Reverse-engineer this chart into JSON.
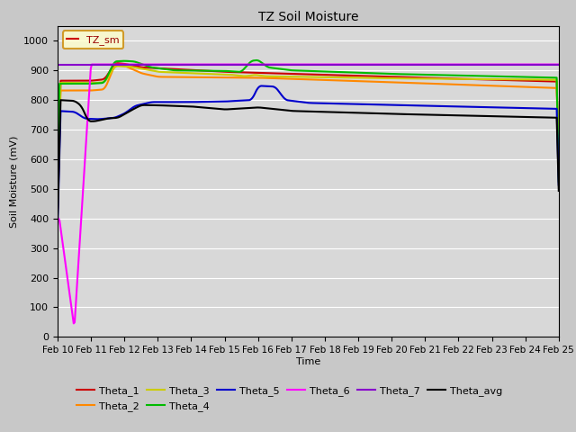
{
  "title": "TZ Soil Moisture",
  "xlabel": "Time",
  "ylabel": "Soil Moisture (mV)",
  "ylim": [
    0,
    1050
  ],
  "yticks": [
    0,
    100,
    200,
    300,
    400,
    500,
    600,
    700,
    800,
    900,
    1000
  ],
  "legend_label": "TZ_sm",
  "bg_color": "#d8d8d8",
  "series_colors": {
    "Theta_1": "#cc0000",
    "Theta_2": "#ff8800",
    "Theta_3": "#cccc00",
    "Theta_4": "#00bb00",
    "Theta_5": "#0000cc",
    "Theta_6": "#ff00ff",
    "Theta_7": "#8800cc",
    "Theta_avg": "#000000"
  },
  "x_ticks": [
    10,
    11,
    12,
    13,
    14,
    15,
    16,
    17,
    18,
    19,
    20,
    21,
    22,
    23,
    24,
    25
  ],
  "x_tick_labels": [
    "Feb 10",
    "Feb 11",
    "Feb 12",
    "Feb 13",
    "Feb 14",
    "Feb 15",
    "Feb 16",
    "Feb 17",
    "Feb 18",
    "Feb 19",
    "Feb 20",
    "Feb 21",
    "Feb 22",
    "Feb 23",
    "Feb 24",
    "Feb 25"
  ],
  "legend_order": [
    "Theta_1",
    "Theta_2",
    "Theta_3",
    "Theta_4",
    "Theta_5",
    "Theta_6",
    "Theta_7",
    "Theta_avg"
  ],
  "legend_ncol": 6,
  "legend_row2": [
    "Theta_7",
    "Theta_avg"
  ]
}
